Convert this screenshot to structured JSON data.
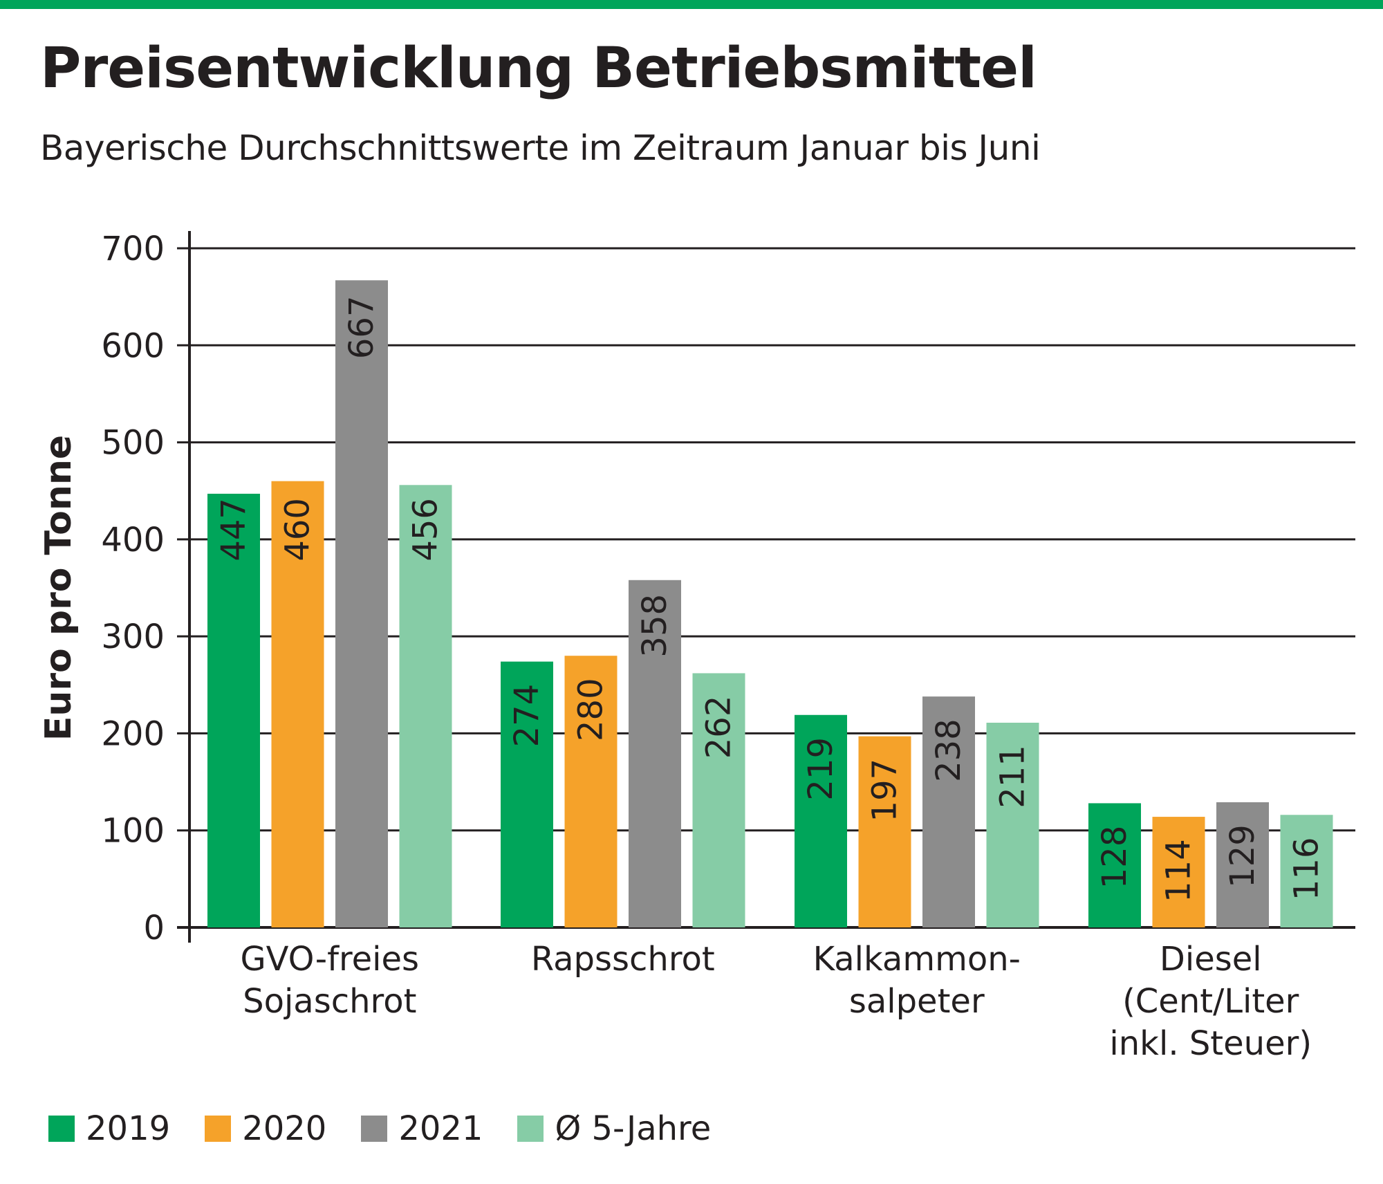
{
  "title": "Preisentwicklung Betriebsmittel",
  "subtitle": "Bayerische Durchschnittswerte im Zeitraum Januar bis Juni",
  "colors": {
    "top_bar": "#00a55a",
    "series_2019": "#00a55a",
    "series_2020": "#f5a22a",
    "series_2021": "#8c8c8c",
    "series_avg": "#86cca6",
    "grid": "#231f20"
  },
  "chart_data": {
    "type": "bar",
    "title": "Preisentwicklung Betriebsmittel",
    "subtitle": "Bayerische Durchschnittswerte im Zeitraum Januar bis Juni",
    "ylabel": "Euro pro Tonne",
    "xlabel": "",
    "ylim": [
      0,
      700
    ],
    "yticks": [
      0,
      100,
      200,
      300,
      400,
      500,
      600,
      700
    ],
    "grid": true,
    "legend_position": "bottom",
    "categories": [
      [
        "GVO-freies",
        "Sojaschrot"
      ],
      [
        "Rapsschrot"
      ],
      [
        "Kalkammon-",
        "salpeter"
      ],
      [
        "Diesel",
        "(Cent/Liter",
        "inkl. Steuer)"
      ]
    ],
    "series": [
      {
        "name": "2019",
        "color": "#00a55a",
        "values": [
          447,
          274,
          219,
          128
        ]
      },
      {
        "name": "2020",
        "color": "#f5a22a",
        "values": [
          460,
          280,
          197,
          114
        ]
      },
      {
        "name": "2021",
        "color": "#8c8c8c",
        "values": [
          667,
          358,
          238,
          129
        ]
      },
      {
        "name": "Ø 5-Jahre",
        "color": "#86cca6",
        "values": [
          456,
          262,
          211,
          116
        ]
      }
    ]
  }
}
